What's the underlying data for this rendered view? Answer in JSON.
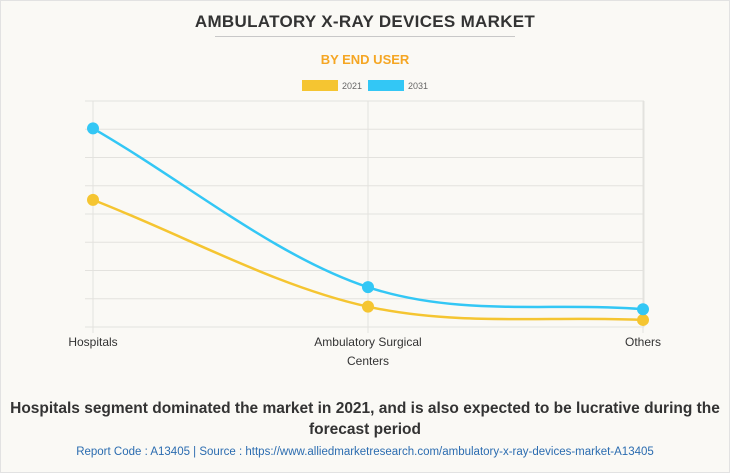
{
  "header": {
    "title": "AMBULATORY X-RAY DEVICES MARKET",
    "subtitle": "BY END USER"
  },
  "chart_data": {
    "type": "line",
    "title": "AMBULATORY X-RAY DEVICES MARKET",
    "subtitle": "BY END USER",
    "categories": [
      "Hospitals",
      "Ambulatory Surgical Centers",
      "Others"
    ],
    "category_label_lines": [
      [
        "Hospitals"
      ],
      [
        "Ambulatory Surgical",
        "Centers"
      ],
      [
        "Others"
      ]
    ],
    "series": [
      {
        "name": "2021",
        "color": "#f5c531",
        "values": [
          4.5,
          0.72,
          0.25
        ]
      },
      {
        "name": "2031",
        "color": "#33c7f5",
        "values": [
          7.03,
          1.41,
          0.63
        ]
      }
    ],
    "xlabel": "",
    "ylabel": "",
    "ylim": [
      0,
      8
    ],
    "y_ticks_labeled": false,
    "grid": true,
    "smooth": true,
    "legend_position": "top-center"
  },
  "caption": "Hospitals segment dominated the market in 2021, and is also expected to be lucrative during the forecast period",
  "footer": "Report Code : A13405  |  Source : https://www.alliedmarketresearch.com/ambulatory-x-ray-devices-market-A13405"
}
